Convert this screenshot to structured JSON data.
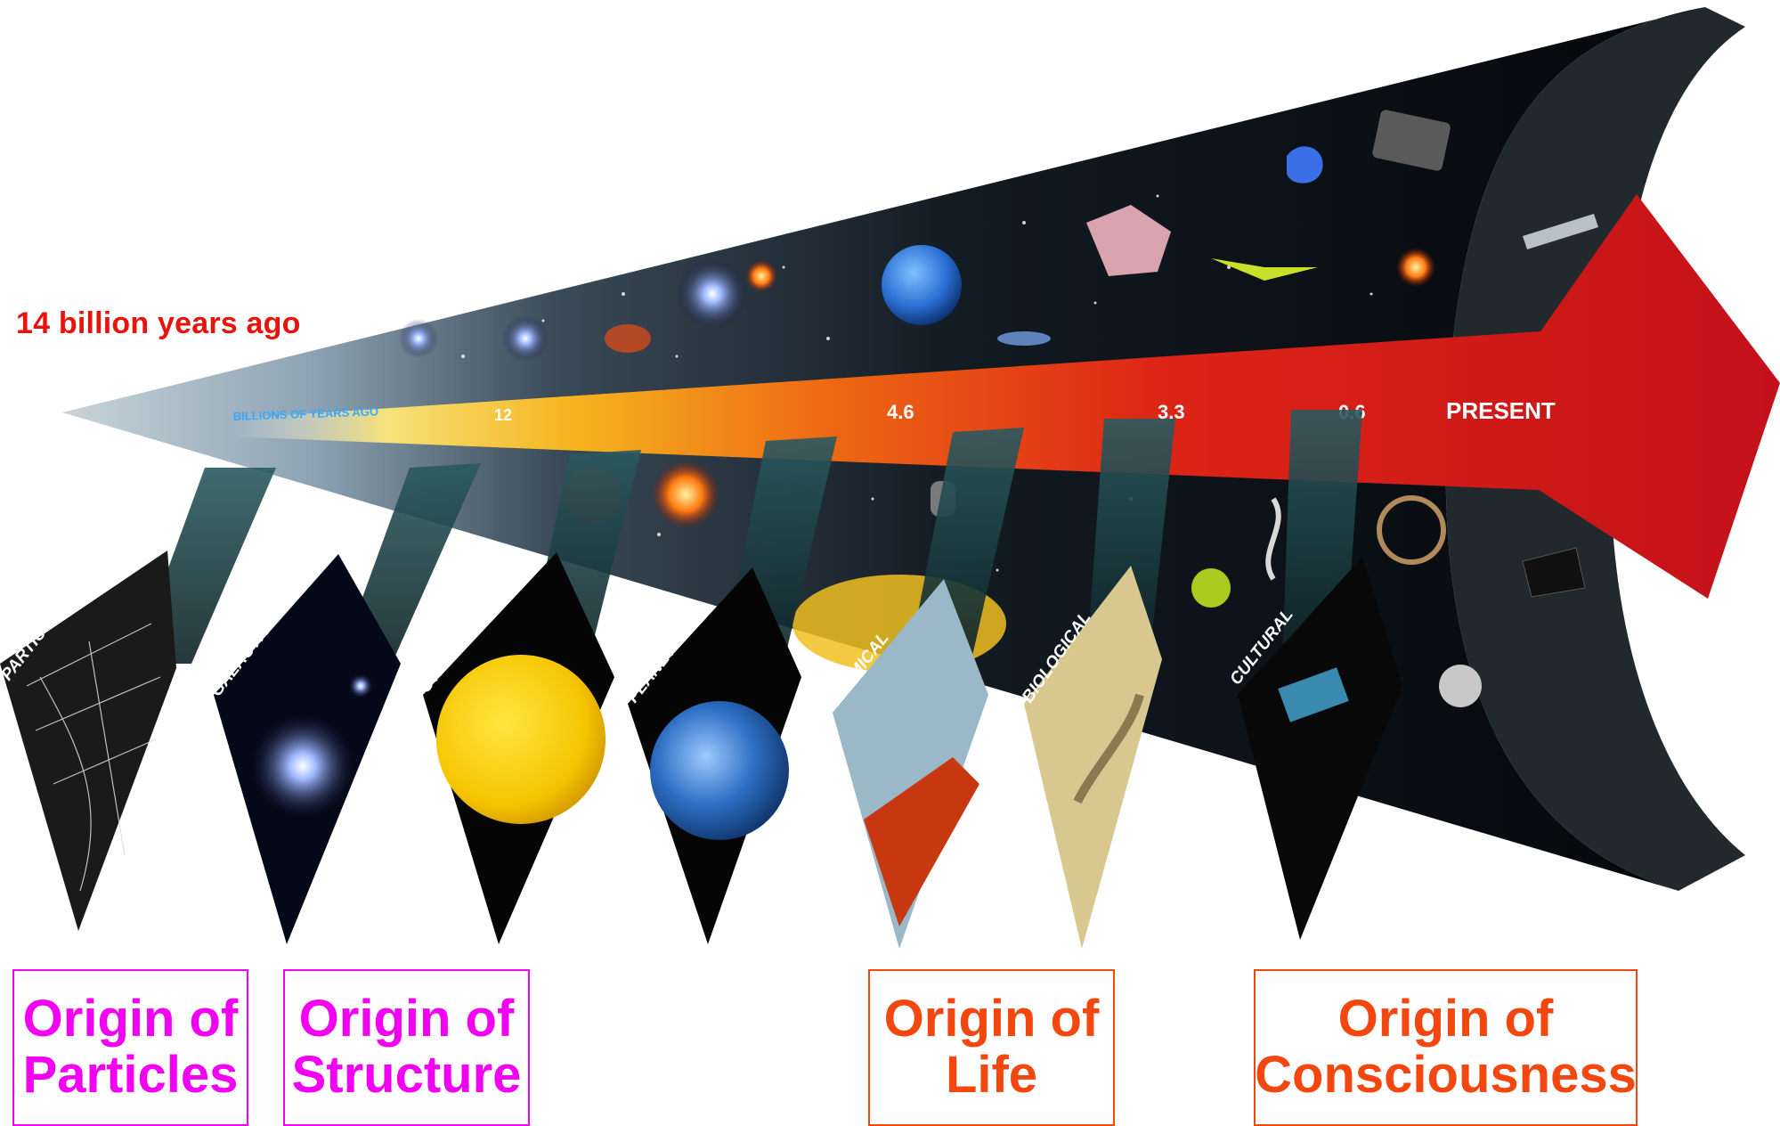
{
  "start_label": "14 billion years ago",
  "axis": {
    "caption": "BILLIONS OF YEARS AGO",
    "markers": [
      "12",
      "4.6",
      "3.3",
      "0.6",
      "PRESENT"
    ]
  },
  "eras": [
    "PARTICULATE",
    "GALACTIC",
    "STELLAR",
    "PLANETARY",
    "CHEMICAL",
    "BIOLOGICAL",
    "CULTURAL"
  ],
  "origins": [
    {
      "line1": "Origin of",
      "line2": "Particles"
    },
    {
      "line1": "Origin of",
      "line2": "Structure"
    },
    {
      "line1": "Origin of",
      "line2": "Life"
    },
    {
      "line1": "Origin of",
      "line2": "Consciousness"
    }
  ],
  "colors": {
    "start_label": "#e8140c",
    "origin_cosmic": "#f200f2",
    "origin_life": "#f2470f",
    "arrow": "#d8141a"
  }
}
